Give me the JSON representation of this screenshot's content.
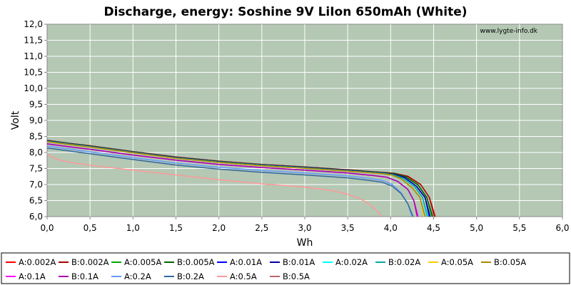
{
  "chart_data": {
    "type": "line",
    "title": "Discharge, energy: Soshine 9V LiIon 650mAh (White)",
    "xlabel": "Wh",
    "ylabel": "Volt",
    "watermark": "www.lygte-info.dk",
    "xlim": [
      0,
      6
    ],
    "ylim": [
      6,
      12
    ],
    "xticks": [
      "0,0",
      "0,5",
      "1,0",
      "1,5",
      "2,0",
      "2,5",
      "3,0",
      "3,5",
      "4,0",
      "4,5",
      "5,0",
      "5,5",
      "6,0"
    ],
    "yticks": [
      "6,0",
      "6,5",
      "7,0",
      "7,5",
      "8,0",
      "8,5",
      "9,0",
      "9,5",
      "10,0",
      "10,5",
      "11,0",
      "11,5",
      "12,0"
    ],
    "grid": true,
    "legend_position": "bottom",
    "colors": {
      "plot_background": "#b4c8b4",
      "grid": "#ffffff"
    },
    "series": [
      {
        "name": "A:0.002A",
        "color": "#ff0000",
        "x": [
          0,
          0.25,
          0.5,
          1,
          1.5,
          2,
          2.5,
          3,
          3.5,
          3.9,
          4.05,
          4.2,
          4.35,
          4.45,
          4.52
        ],
        "y": [
          8.37,
          8.28,
          8.2,
          8.02,
          7.85,
          7.72,
          7.62,
          7.54,
          7.45,
          7.37,
          7.34,
          7.25,
          7.0,
          6.6,
          6.0
        ]
      },
      {
        "name": "B:0.002A",
        "color": "#aa0000",
        "x": [
          0,
          0.25,
          0.5,
          1,
          1.5,
          2,
          2.5,
          3,
          3.5,
          3.9,
          4.05,
          4.2,
          4.35,
          4.45,
          4.51
        ],
        "y": [
          8.38,
          8.29,
          8.21,
          8.03,
          7.86,
          7.73,
          7.63,
          7.55,
          7.46,
          7.38,
          7.35,
          7.26,
          7.0,
          6.6,
          6.0
        ]
      },
      {
        "name": "A:0.005A",
        "color": "#00aa00",
        "x": [
          0,
          0.25,
          0.5,
          1,
          1.5,
          2,
          2.5,
          3,
          3.5,
          3.9,
          4.04,
          4.18,
          4.32,
          4.42,
          4.48
        ],
        "y": [
          8.36,
          8.27,
          8.19,
          8.01,
          7.84,
          7.71,
          7.61,
          7.53,
          7.44,
          7.36,
          7.33,
          7.23,
          6.98,
          6.6,
          6.0
        ]
      },
      {
        "name": "B:0.005A",
        "color": "#006400",
        "x": [
          0,
          0.25,
          0.5,
          1,
          1.5,
          2,
          2.5,
          3,
          3.5,
          3.9,
          4.04,
          4.18,
          4.32,
          4.42,
          4.49
        ],
        "y": [
          8.37,
          8.28,
          8.2,
          8.02,
          7.85,
          7.72,
          7.62,
          7.54,
          7.45,
          7.37,
          7.34,
          7.24,
          6.99,
          6.6,
          6.0
        ]
      },
      {
        "name": "A:0.01A",
        "color": "#0000ff",
        "x": [
          0,
          0.25,
          0.5,
          1,
          1.5,
          2,
          2.5,
          3,
          3.5,
          3.9,
          4.03,
          4.16,
          4.3,
          4.4,
          4.45
        ],
        "y": [
          8.36,
          8.27,
          8.19,
          8.01,
          7.84,
          7.71,
          7.61,
          7.53,
          7.44,
          7.36,
          7.32,
          7.22,
          6.95,
          6.6,
          6.0
        ]
      },
      {
        "name": "B:0.01A",
        "color": "#0000aa",
        "x": [
          0,
          0.25,
          0.5,
          1,
          1.5,
          2,
          2.5,
          3,
          3.5,
          3.9,
          4.03,
          4.16,
          4.3,
          4.4,
          4.46
        ],
        "y": [
          8.36,
          8.27,
          8.19,
          8.01,
          7.84,
          7.71,
          7.61,
          7.53,
          7.44,
          7.36,
          7.32,
          7.22,
          6.95,
          6.6,
          6.0
        ]
      },
      {
        "name": "A:0.02A",
        "color": "#00ffff",
        "x": [
          0,
          0.25,
          0.5,
          1,
          1.5,
          2,
          2.5,
          3,
          3.5,
          3.9,
          4.02,
          4.14,
          4.28,
          4.37,
          4.42
        ],
        "y": [
          8.35,
          8.26,
          8.18,
          8.0,
          7.83,
          7.7,
          7.6,
          7.52,
          7.43,
          7.35,
          7.31,
          7.2,
          6.93,
          6.6,
          6.0
        ]
      },
      {
        "name": "B:0.02A",
        "color": "#00aaaa",
        "x": [
          0,
          0.25,
          0.5,
          1,
          1.5,
          2,
          2.5,
          3,
          3.5,
          3.9,
          4.02,
          4.14,
          4.28,
          4.37,
          4.43
        ],
        "y": [
          8.35,
          8.26,
          8.18,
          8.0,
          7.83,
          7.7,
          7.6,
          7.52,
          7.43,
          7.35,
          7.31,
          7.2,
          6.93,
          6.6,
          6.0
        ]
      },
      {
        "name": "A:0.05A",
        "color": "#ffcc00",
        "x": [
          0,
          0.25,
          0.5,
          1,
          1.5,
          2,
          2.5,
          3,
          3.5,
          3.9,
          4.01,
          4.12,
          4.25,
          4.34,
          4.39
        ],
        "y": [
          8.34,
          8.25,
          8.17,
          7.99,
          7.82,
          7.69,
          7.59,
          7.51,
          7.42,
          7.34,
          7.3,
          7.18,
          6.9,
          6.6,
          6.0
        ]
      },
      {
        "name": "B:0.05A",
        "color": "#aa8800",
        "x": [
          0,
          0.25,
          0.5,
          1,
          1.5,
          2,
          2.5,
          3,
          3.5,
          3.9,
          4.01,
          4.12,
          4.25,
          4.34,
          4.4
        ],
        "y": [
          8.34,
          8.25,
          8.17,
          7.99,
          7.82,
          7.69,
          7.59,
          7.51,
          7.42,
          7.34,
          7.3,
          7.18,
          6.9,
          6.6,
          6.0
        ]
      },
      {
        "name": "A:0.1A",
        "color": "#ff00ff",
        "x": [
          0,
          0.25,
          0.5,
          1,
          1.5,
          2,
          2.5,
          3,
          3.5,
          3.8,
          3.95,
          4.08,
          4.2,
          4.27,
          4.32
        ],
        "y": [
          8.27,
          8.18,
          8.1,
          7.92,
          7.76,
          7.63,
          7.53,
          7.45,
          7.36,
          7.28,
          7.23,
          7.1,
          6.85,
          6.5,
          6.0
        ]
      },
      {
        "name": "B:0.1A",
        "color": "#aa00aa",
        "x": [
          0,
          0.25,
          0.5,
          1,
          1.5,
          2,
          2.5,
          3,
          3.5,
          3.8,
          3.95,
          4.08,
          4.2,
          4.27,
          4.31
        ],
        "y": [
          8.27,
          8.18,
          8.1,
          7.92,
          7.76,
          7.63,
          7.53,
          7.45,
          7.36,
          7.28,
          7.23,
          7.1,
          6.85,
          6.5,
          6.0
        ]
      },
      {
        "name": "A:0.2A",
        "color": "#6699ff",
        "x": [
          0,
          0.25,
          0.5,
          1,
          1.5,
          2,
          2.5,
          3,
          3.5,
          3.75,
          3.9,
          4.02,
          4.12,
          4.2,
          4.25
        ],
        "y": [
          8.2,
          8.11,
          8.02,
          7.84,
          7.67,
          7.54,
          7.44,
          7.36,
          7.27,
          7.19,
          7.13,
          7.0,
          6.75,
          6.4,
          6.0
        ]
      },
      {
        "name": "B:0.2A",
        "color": "#336699",
        "x": [
          0,
          0.25,
          0.5,
          1,
          1.5,
          2,
          2.5,
          3,
          3.5,
          3.75,
          3.9,
          4.02,
          4.12,
          4.2,
          4.26
        ],
        "y": [
          8.14,
          8.05,
          7.96,
          7.78,
          7.61,
          7.48,
          7.38,
          7.3,
          7.21,
          7.13,
          7.07,
          6.95,
          6.72,
          6.4,
          6.0
        ]
      },
      {
        "name": "A:0.5A",
        "color": "#ff9999",
        "x": [
          0,
          0.1,
          0.25,
          0.5,
          1,
          1.5,
          2,
          2.5,
          3,
          3.3,
          3.5,
          3.65,
          3.77,
          3.85,
          3.9
        ],
        "y": [
          7.95,
          7.8,
          7.7,
          7.6,
          7.45,
          7.3,
          7.15,
          7.02,
          6.92,
          6.82,
          6.7,
          6.55,
          6.35,
          6.15,
          6.0
        ]
      },
      {
        "name": "B:0.5A",
        "color": "#bb6666",
        "x": [],
        "y": []
      }
    ]
  }
}
